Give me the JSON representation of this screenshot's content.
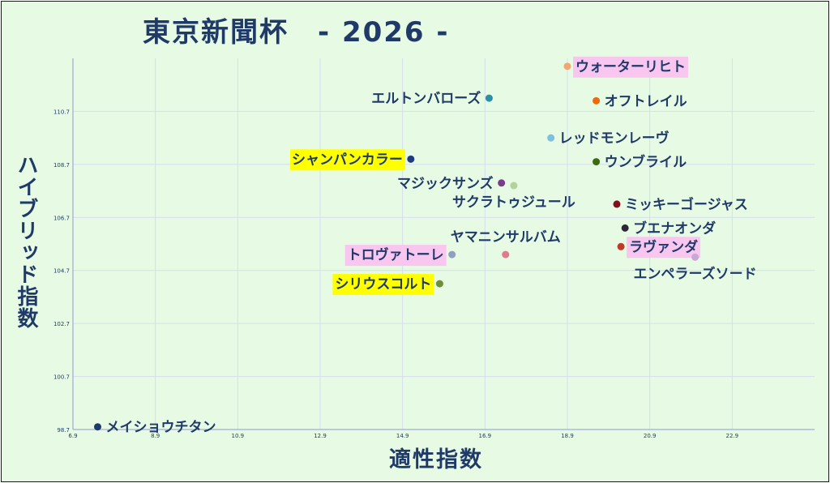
{
  "chart_data": {
    "type": "scatter",
    "title": "東京新聞杯　- 2026 -",
    "xlabel": "適性指数",
    "ylabel": "ハイブリッド指数",
    "xlim": [
      6.9,
      24.9
    ],
    "ylim": [
      98.7,
      112.7
    ],
    "x_ticks": [
      "6.9",
      "8.9",
      "10.9",
      "12.9",
      "14.9",
      "16.9",
      "18.9",
      "20.9",
      "22.9"
    ],
    "y_ticks": [
      "98.7",
      "100.7",
      "102.7",
      "104.7",
      "106.7",
      "108.7",
      "110.7"
    ],
    "grid": true,
    "points": [
      {
        "label": "ウォーターリヒト",
        "x": 18.9,
        "y": 112.4,
        "color": "#f4a672",
        "highlight": "#f9c6f0",
        "label_side": "right"
      },
      {
        "label": "エルトンバローズ",
        "x": 17.0,
        "y": 111.2,
        "color": "#2b8fa6",
        "highlight": "",
        "label_side": "left"
      },
      {
        "label": "オフトレイル",
        "x": 19.6,
        "y": 111.1,
        "color": "#ee6a0a",
        "highlight": "",
        "label_side": "right"
      },
      {
        "label": "レッドモンレーヴ",
        "x": 18.5,
        "y": 109.7,
        "color": "#7fbfe0",
        "highlight": "",
        "label_side": "right"
      },
      {
        "label": "シャンパンカラー",
        "x": 15.1,
        "y": 108.9,
        "color": "#1f3a80",
        "highlight": "#ffff00",
        "label_side": "left"
      },
      {
        "label": "ウンブライル",
        "x": 19.6,
        "y": 108.8,
        "color": "#3d6b12",
        "highlight": "",
        "label_side": "right"
      },
      {
        "label": "マジックサンズ",
        "x": 17.3,
        "y": 108.0,
        "color": "#7c3c8c",
        "highlight": "",
        "label_side": "left"
      },
      {
        "label": "サクラトゥジュール",
        "x": 17.6,
        "y": 107.9,
        "color": "#b4d39b",
        "highlight": "",
        "label_side": "below"
      },
      {
        "label": "ミッキーゴージャス",
        "x": 20.1,
        "y": 107.2,
        "color": "#801020",
        "highlight": "",
        "label_side": "right"
      },
      {
        "label": "ブエナオンダ",
        "x": 20.3,
        "y": 106.3,
        "color": "#2e2638",
        "highlight": "",
        "label_side": "right"
      },
      {
        "label": "ヤマニンサルバム",
        "x": 17.4,
        "y": 105.3,
        "color": "#e07a8c",
        "highlight": "",
        "label_side": "above"
      },
      {
        "label": "ラヴァンダ",
        "x": 20.2,
        "y": 105.6,
        "color": "#c0392b",
        "highlight": "#f9c6f0",
        "label_side": "right"
      },
      {
        "label": "トロヴァトーレ",
        "x": 16.1,
        "y": 105.3,
        "color": "#8fa0c0",
        "highlight": "#f9c6f0",
        "label_side": "left"
      },
      {
        "label": "エンペラーズソード",
        "x": 22.0,
        "y": 105.2,
        "color": "#c8a8d8",
        "highlight": "",
        "label_side": "below"
      },
      {
        "label": "シリウスコルト",
        "x": 15.8,
        "y": 104.2,
        "color": "#6b8f3a",
        "highlight": "#ffff00",
        "label_side": "left"
      },
      {
        "label": "メイショウチタン",
        "x": 7.5,
        "y": 98.8,
        "color": "#1f3a68",
        "highlight": "",
        "label_side": "right"
      }
    ]
  }
}
